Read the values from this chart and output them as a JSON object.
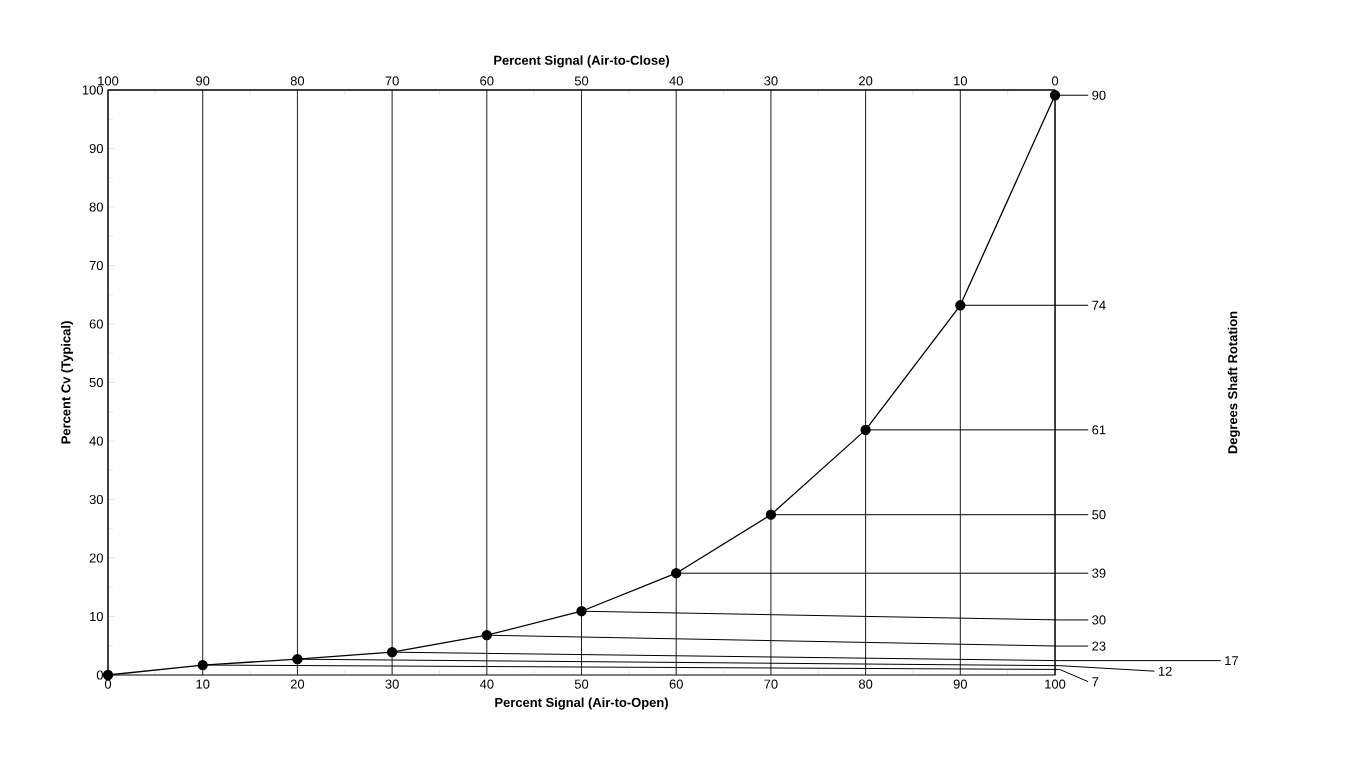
{
  "chart_data": {
    "type": "line",
    "xlabel": "Percent Signal  (Air-to-Open)",
    "x2label": "Percent Signal  (Air-to-Close)",
    "ylabel": "Percent Cv (Typical)",
    "x": [
      0,
      10,
      20,
      30,
      40,
      50,
      60,
      70,
      80,
      90,
      100
    ],
    "series": [
      {
        "color": "#000000",
        "values": [
          0,
          1.7,
          2.7,
          3.9,
          6.8,
          10.9,
          17.4,
          27.4,
          41.9,
          63.2,
          99.1
        ]
      }
    ],
    "xlim": [
      0,
      100
    ],
    "xticks": [
      0,
      10,
      20,
      30,
      40,
      50,
      60,
      70,
      80,
      90,
      100
    ],
    "x2lim": [
      100,
      0
    ],
    "x2ticks": [
      100,
      90,
      80,
      70,
      60,
      50,
      40,
      30,
      20,
      10,
      0
    ],
    "ylim": [
      0,
      100
    ],
    "yticks": [
      0,
      10,
      20,
      30,
      40,
      50,
      60,
      70,
      80,
      90,
      100
    ],
    "grid": "x",
    "marker": "circle",
    "line_style": "solid",
    "annotations": [
      "Degrees Shaft Rotation",
      {
        "text": "90",
        "x": 100,
        "y": 99.1
      },
      {
        "text": "74",
        "x": 90,
        "y": 63.2
      },
      {
        "text": "61",
        "x": 80,
        "y": 41.9
      },
      {
        "text": "50",
        "x": 70,
        "y": 27.4
      },
      {
        "text": "39",
        "x": 60,
        "y": 17.4
      },
      {
        "text": "30",
        "x": 50,
        "y": 10.9
      },
      {
        "text": "23",
        "x": 40,
        "y": 6.8
      },
      {
        "text": "17",
        "x": 30,
        "y": 3.9
      },
      {
        "text": "12",
        "x": 20,
        "y": 2.7
      },
      {
        "text": "7",
        "x": 10,
        "y": 1.7
      }
    ]
  }
}
